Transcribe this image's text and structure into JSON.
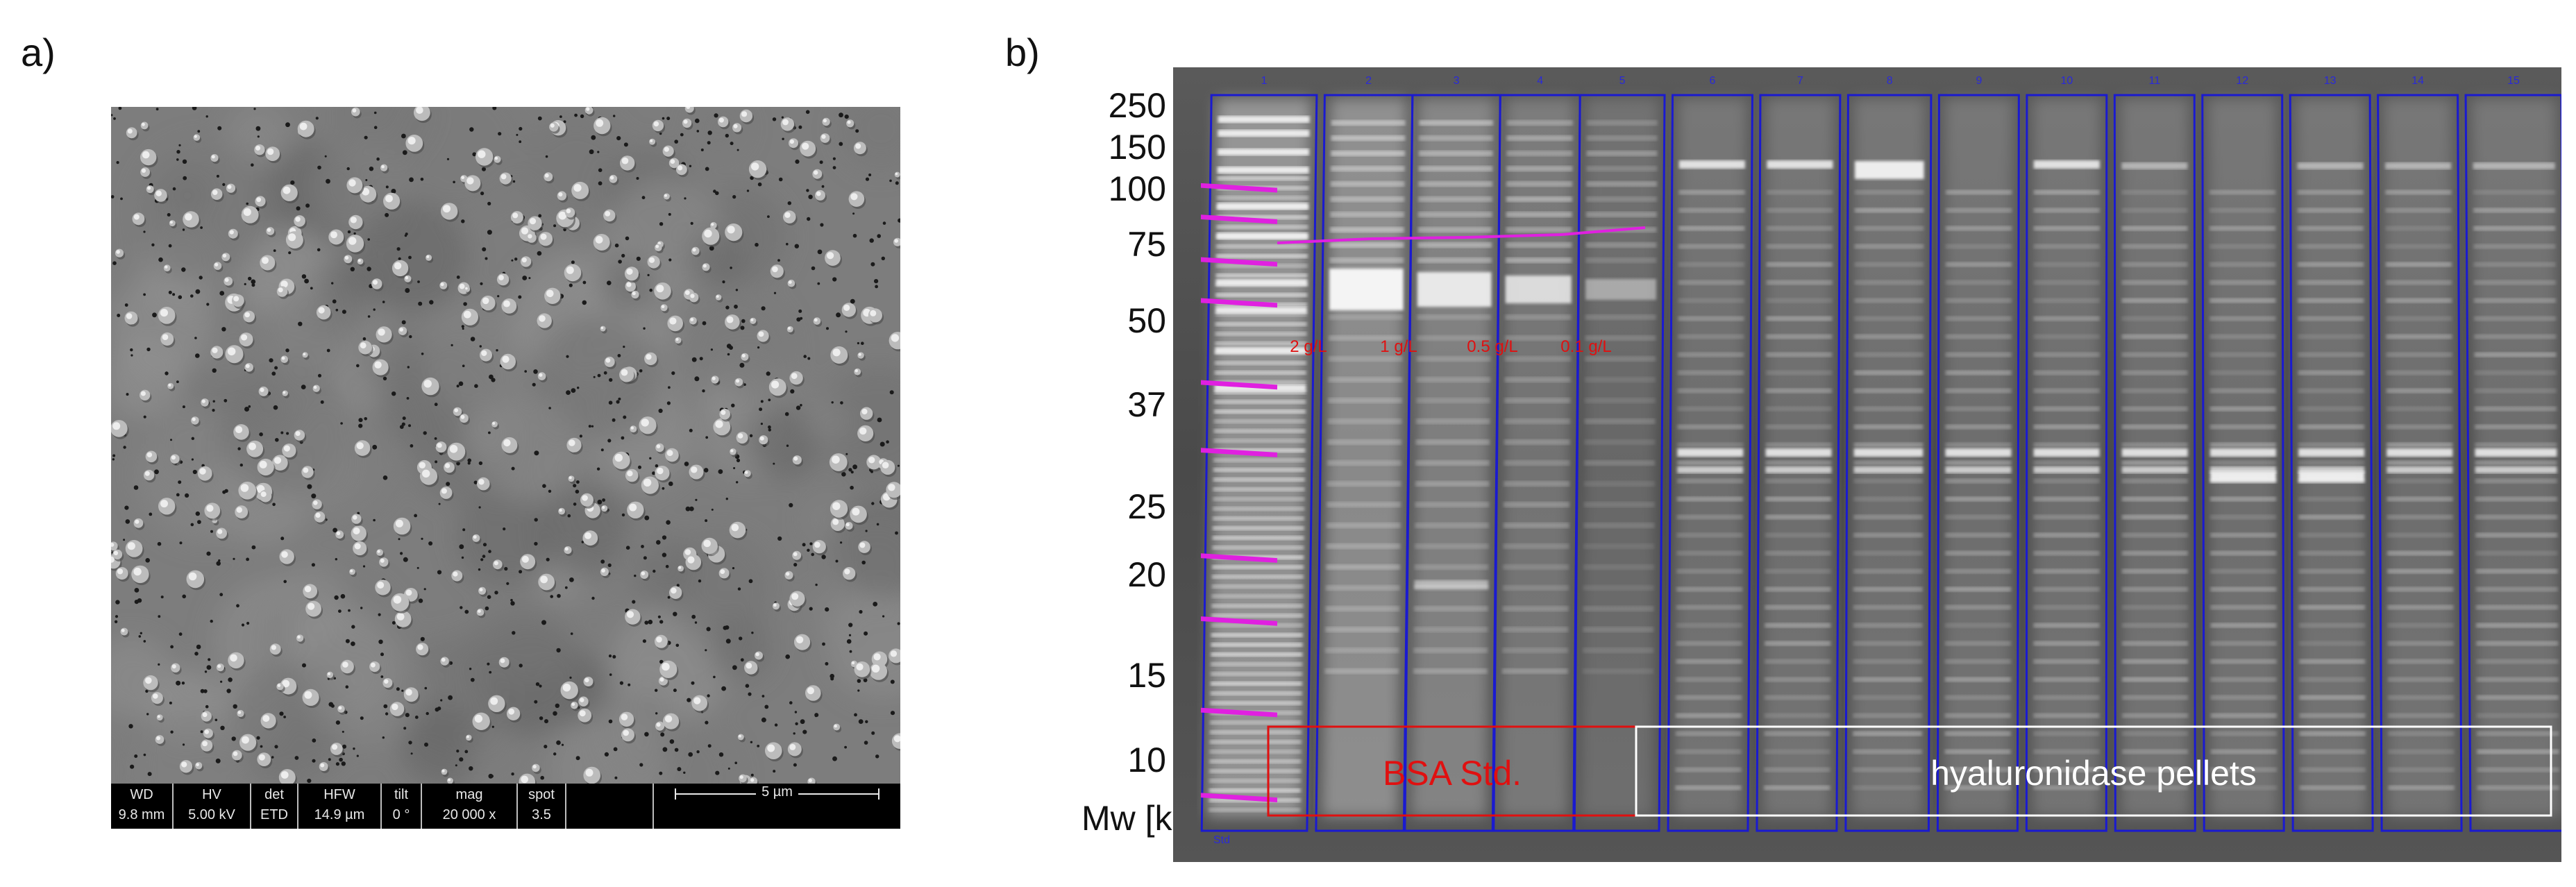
{
  "panels": {
    "a": {
      "label": "a)"
    },
    "b": {
      "label": "b)"
    }
  },
  "sem": {
    "info_bar": [
      {
        "header": "WD",
        "value": "9.8 mm"
      },
      {
        "header": "HV",
        "value": "5.00 kV"
      },
      {
        "header": "det",
        "value": "ETD"
      },
      {
        "header": "HFW",
        "value": "14.9 µm"
      },
      {
        "header": "tilt",
        "value": "0 °"
      },
      {
        "header": "mag",
        "value": "20 000 x"
      },
      {
        "header": "spot",
        "value": "3.5"
      }
    ],
    "scale_bar": "5 µm"
  },
  "gel": {
    "mw_axis_label": "Mw [kDa]",
    "mw_markers": [
      "250",
      "150",
      "100",
      "75",
      "50",
      "37",
      "25",
      "20",
      "15",
      "10"
    ],
    "lane_numbers": [
      "1",
      "2",
      "3",
      "4",
      "5",
      "6",
      "7",
      "8",
      "9",
      "10",
      "11",
      "12",
      "13",
      "14",
      "15"
    ],
    "std_lane_label": "Std",
    "bsa_concentrations": [
      "2 g/L",
      "1 g/L",
      "0.5 g/L",
      "0.1 g/L"
    ],
    "group_labels": {
      "bsa": "BSA Std.",
      "samples": "hyaluronidase pellets"
    },
    "colors": {
      "lane_outline": "#1a1ad0",
      "marker_ticks": "#e020e0",
      "bsa_annotation": "#e01010",
      "sample_box": "#ffffff"
    }
  }
}
